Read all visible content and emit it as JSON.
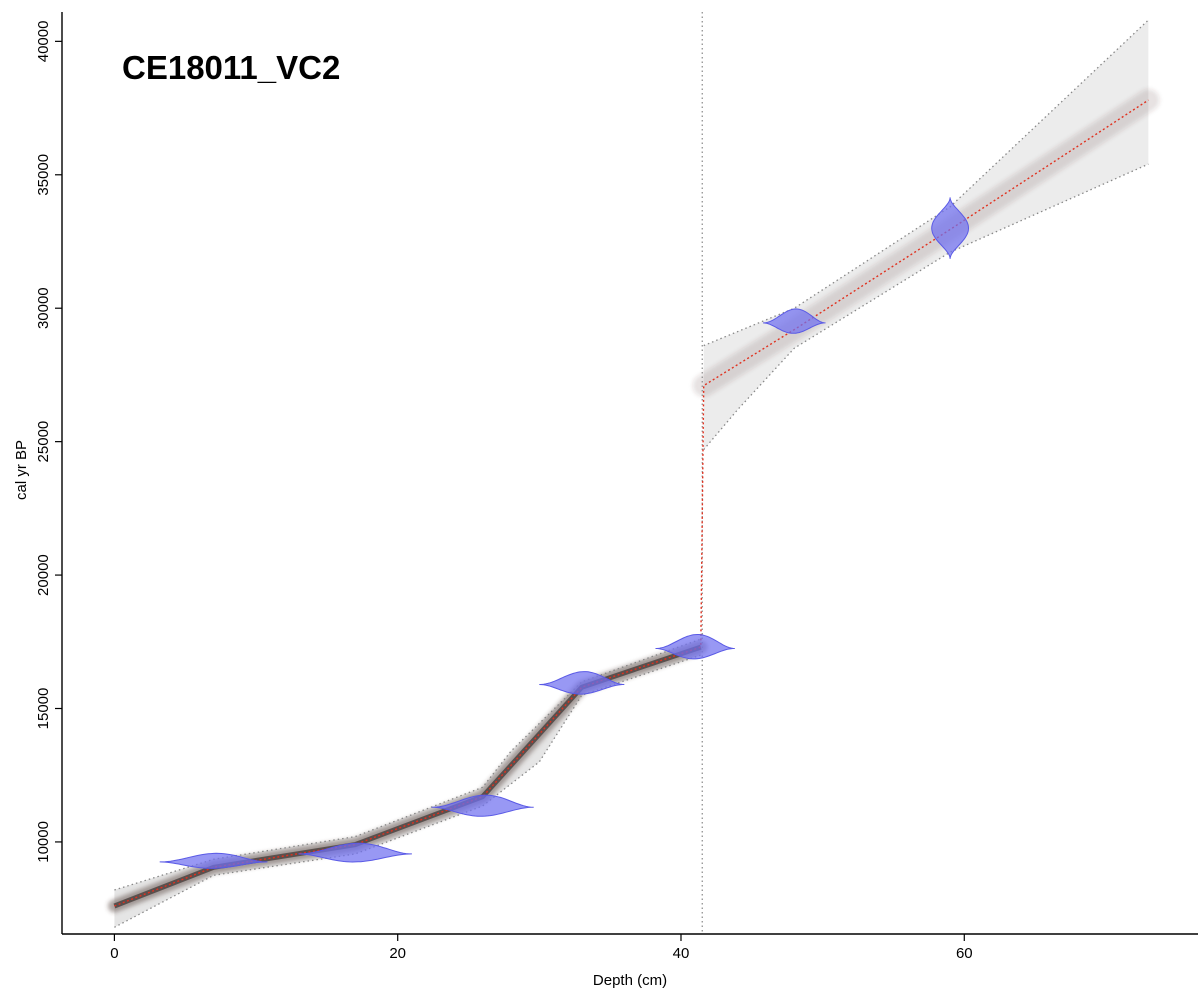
{
  "chart_data": {
    "type": "line",
    "title": "CE18011_VC2",
    "xlabel": "Depth (cm)",
    "ylabel": "cal yr BP",
    "xlim": [
      -3.7,
      76.5
    ],
    "ylim": [
      6550,
      41100
    ],
    "x_ticks": [
      0,
      20,
      40,
      60
    ],
    "y_ticks": [
      10000,
      15000,
      20000,
      25000,
      30000,
      35000,
      40000
    ],
    "grid": false,
    "hiatus_depth": 41.5,
    "colors": {
      "model_line": "#e0311f",
      "bounds": "#888888",
      "date_fill": "#7070f0",
      "date_stroke": "#5a5ae6",
      "envelope": "#4d3b35"
    },
    "series": [
      {
        "values": [
          {
            "x": 0,
            "y": 7600
          },
          {
            "x": 7,
            "y": 9050
          },
          {
            "x": 17,
            "y": 9900
          },
          {
            "x": 26,
            "y": 11700
          },
          {
            "x": 33,
            "y": 15800
          },
          {
            "x": 41.4,
            "y": 17300
          },
          {
            "x": 41.6,
            "y": 27100
          },
          {
            "x": 48,
            "y": 29200
          },
          {
            "x": 59,
            "y": 32950
          },
          {
            "x": 73,
            "y": 37800
          }
        ]
      },
      {
        "values": [
          {
            "x": 0,
            "y": 8200
          },
          {
            "x": 7,
            "y": 9350
          },
          {
            "x": 17,
            "y": 10200
          },
          {
            "x": 26,
            "y": 12050
          },
          {
            "x": 28,
            "y": 13400
          },
          {
            "x": 33,
            "y": 16000
          },
          {
            "x": 41.4,
            "y": 17600
          },
          {
            "x": 41.6,
            "y": 28600
          },
          {
            "x": 48,
            "y": 30000
          },
          {
            "x": 59,
            "y": 33800
          },
          {
            "x": 73,
            "y": 40800
          }
        ]
      },
      {
        "values": [
          {
            "x": 0,
            "y": 6800
          },
          {
            "x": 7,
            "y": 8750
          },
          {
            "x": 17,
            "y": 9550
          },
          {
            "x": 26,
            "y": 11350
          },
          {
            "x": 30,
            "y": 13000
          },
          {
            "x": 33,
            "y": 15500
          },
          {
            "x": 41.4,
            "y": 17000
          },
          {
            "x": 41.6,
            "y": 24700
          },
          {
            "x": 44,
            "y": 26200
          },
          {
            "x": 48,
            "y": 28500
          },
          {
            "x": 59,
            "y": 32100
          },
          {
            "x": 73,
            "y": 35400
          }
        ]
      }
    ],
    "dates": [
      {
        "depth": 7,
        "age": 9250,
        "half_width": 3.8,
        "half_height": 320
      },
      {
        "depth": 17,
        "age": 9550,
        "half_width": 4.0,
        "half_height": 400
      },
      {
        "depth": 26,
        "age": 11300,
        "half_width": 3.6,
        "half_height": 450
      },
      {
        "depth": 33,
        "age": 15900,
        "half_width": 3.0,
        "half_height": 480
      },
      {
        "depth": 41,
        "age": 17250,
        "half_width": 2.8,
        "half_height": 520
      },
      {
        "depth": 48,
        "age": 29450,
        "half_width": 2.2,
        "half_height": 520
      },
      {
        "depth": 59,
        "age": 33000,
        "half_width": 1.3,
        "half_height": 1150
      }
    ]
  }
}
